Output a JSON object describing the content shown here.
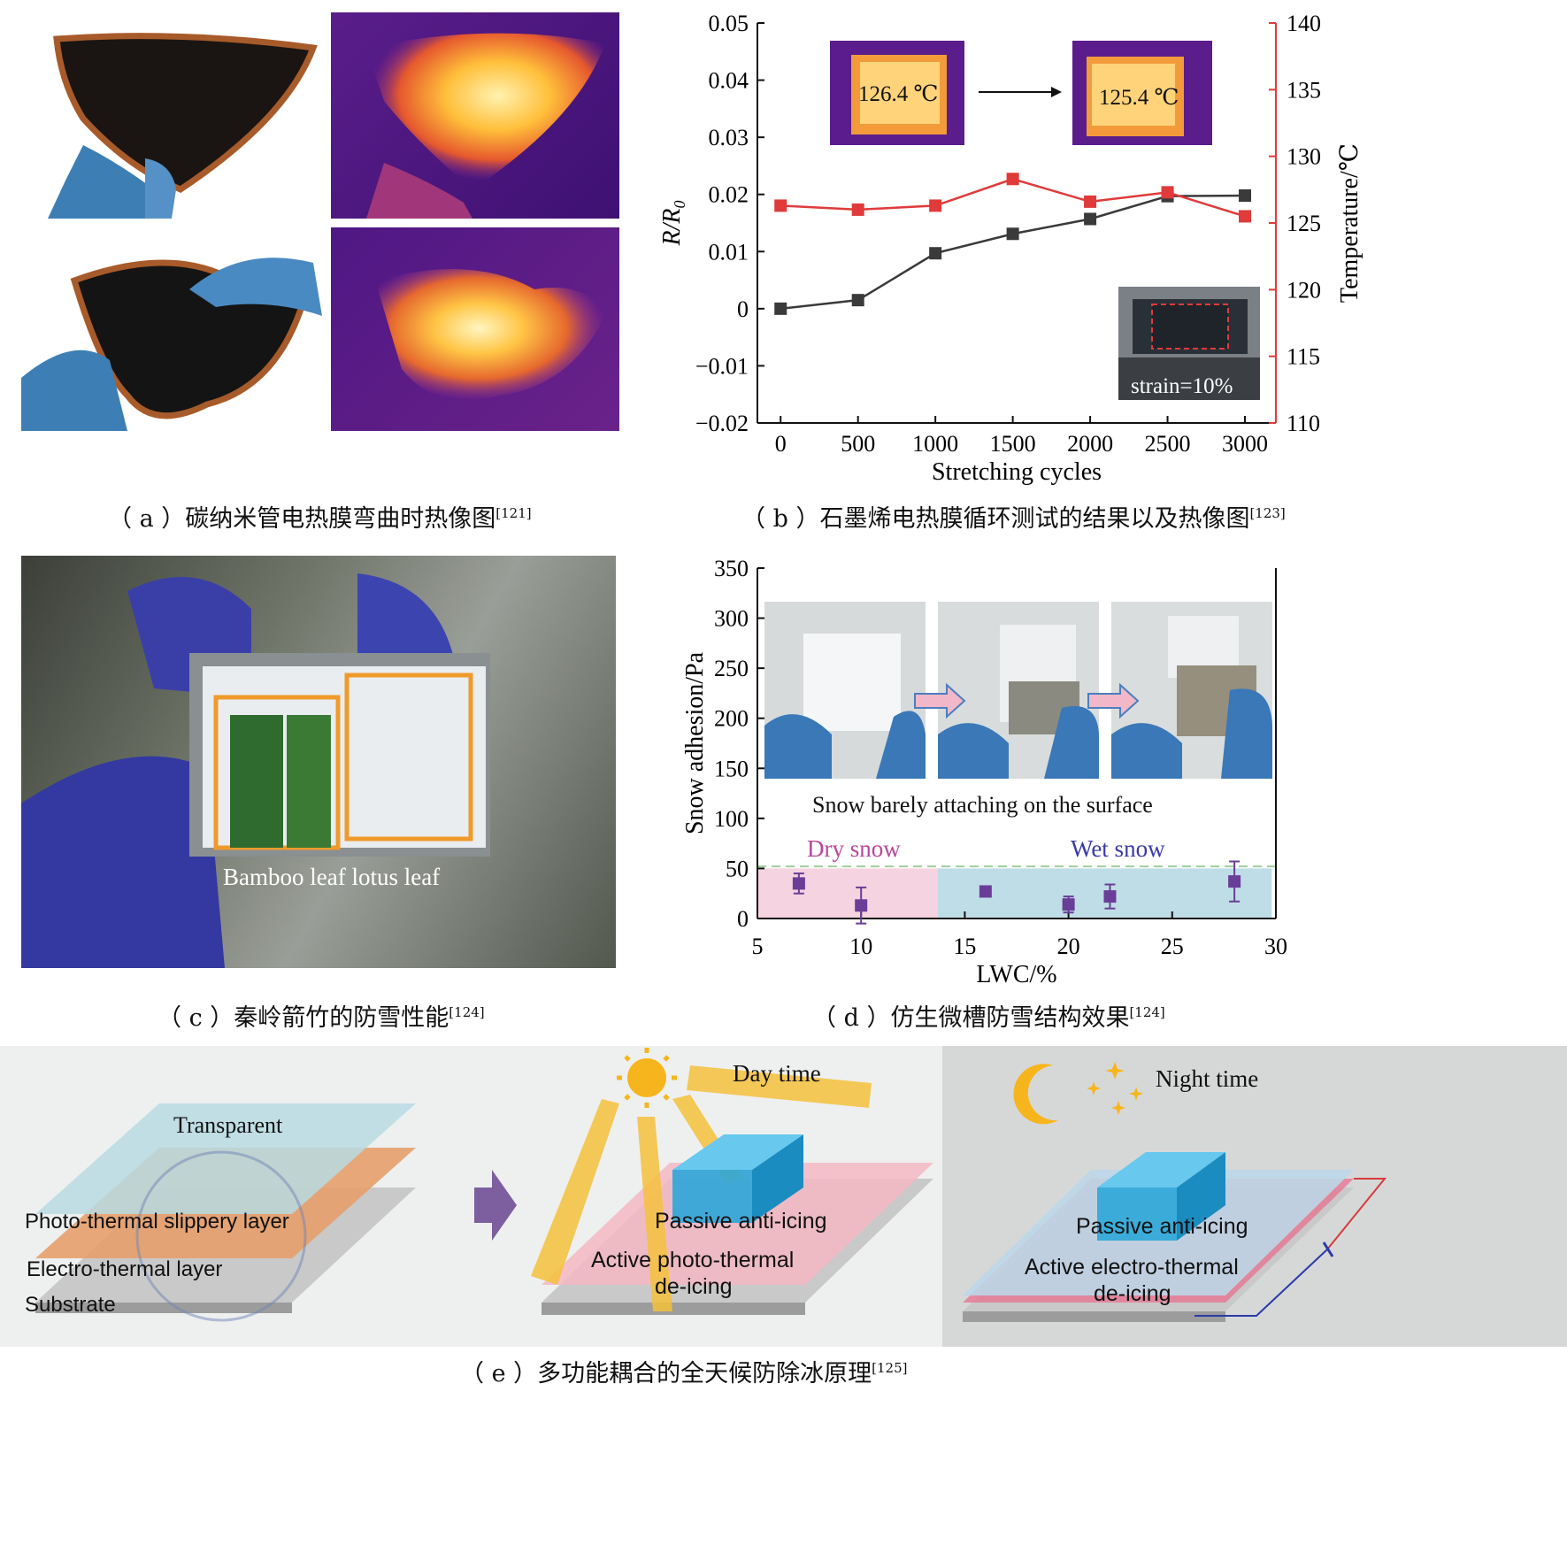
{
  "captions": {
    "a": {
      "text": "（ a ）碳纳米管电热膜弯曲时热像图",
      "ref": "[121]"
    },
    "b": {
      "text": "（ b ）石墨烯电热膜循环测试的结果以及热像图",
      "ref": "[123]"
    },
    "c": {
      "text": "（ c ）秦岭箭竹的防雪性能",
      "ref": "[124]"
    },
    "d": {
      "text": "（ d ）仿生微槽防雪结构效果",
      "ref": "[124]"
    },
    "e": {
      "text": "（ e ）多功能耦合的全天候防除冰原理",
      "ref": "[125]"
    }
  },
  "panel_b": {
    "inset_left_temp": "126.4 ℃",
    "inset_right_temp": "125.4 ℃",
    "inset_strain": "strain=10%"
  },
  "panel_c": {
    "label": "Bamboo leaf lotus leaf"
  },
  "panel_d": {
    "inset_caption": "Snow barely attaching on the surface",
    "dry_label": "Dry snow",
    "wet_label": "Wet snow"
  },
  "panel_e": {
    "transparent": "Transparent",
    "photo_layer": "Photo-thermal slippery layer",
    "electro_layer": "Electro-thermal layer",
    "substrate": "Substrate",
    "day_time": "Day time",
    "night_time": "Night time",
    "passive_day": "Passive anti-icing",
    "active_photo_1": "Active photo-thermal",
    "active_photo_2": "de-icing",
    "passive_night": "Passive anti-icing",
    "active_electro_1": "Active electro-thermal",
    "active_electro_2": "de-icing"
  },
  "chart_data": [
    {
      "type": "line",
      "panel": "b",
      "xlabel": "Stretching cycles",
      "ylabel": "R/R0",
      "y2label": "Temperature/℃",
      "x": [
        0,
        500,
        1000,
        1500,
        2000,
        2500,
        3000
      ],
      "xlim": [
        -150,
        3200
      ],
      "ylim": [
        -0.02,
        0.05
      ],
      "y2lim": [
        110,
        140
      ],
      "yticks": [
        "0.05",
        "0.04",
        "0.03",
        "0.02",
        "0.01",
        "0",
        "−0.01",
        "−0.02"
      ],
      "y2ticks": [
        "140",
        "135",
        "130",
        "125",
        "120",
        "115",
        "110"
      ],
      "xticks": [
        "0",
        "500",
        "1000",
        "1500",
        "2000",
        "2500",
        "3000"
      ],
      "series": [
        {
          "axis": "left",
          "color": "#3a3a3a",
          "values": [
            0.0,
            0.0015,
            0.0097,
            0.0131,
            0.0157,
            0.0197,
            0.0198
          ]
        },
        {
          "axis": "right",
          "color": "#e03a3a",
          "values": [
            126.3,
            126.0,
            126.3,
            128.3,
            126.6,
            127.3,
            125.5
          ]
        }
      ]
    },
    {
      "type": "scatter",
      "panel": "d",
      "xlabel": "LWC/%",
      "ylabel": "Snow adhesion/Pa",
      "xlim": [
        5,
        30
      ],
      "ylim": [
        0,
        350
      ],
      "xticks": [
        "5",
        "10",
        "15",
        "20",
        "25",
        "30"
      ],
      "yticks": [
        "350",
        "300",
        "250",
        "200",
        "150",
        "100",
        "50",
        "0"
      ],
      "threshold": 50,
      "dry_range": [
        5,
        13.7
      ],
      "wet_range": [
        13.7,
        29.8
      ],
      "points": [
        {
          "x": 7,
          "y": 35,
          "err": 10
        },
        {
          "x": 10,
          "y": 13,
          "err": 18
        },
        {
          "x": 16,
          "y": 27,
          "err": 0
        },
        {
          "x": 20,
          "y": 14,
          "err": 8
        },
        {
          "x": 22,
          "y": 22,
          "err": 12
        },
        {
          "x": 28,
          "y": 37,
          "err": 20
        }
      ]
    }
  ]
}
